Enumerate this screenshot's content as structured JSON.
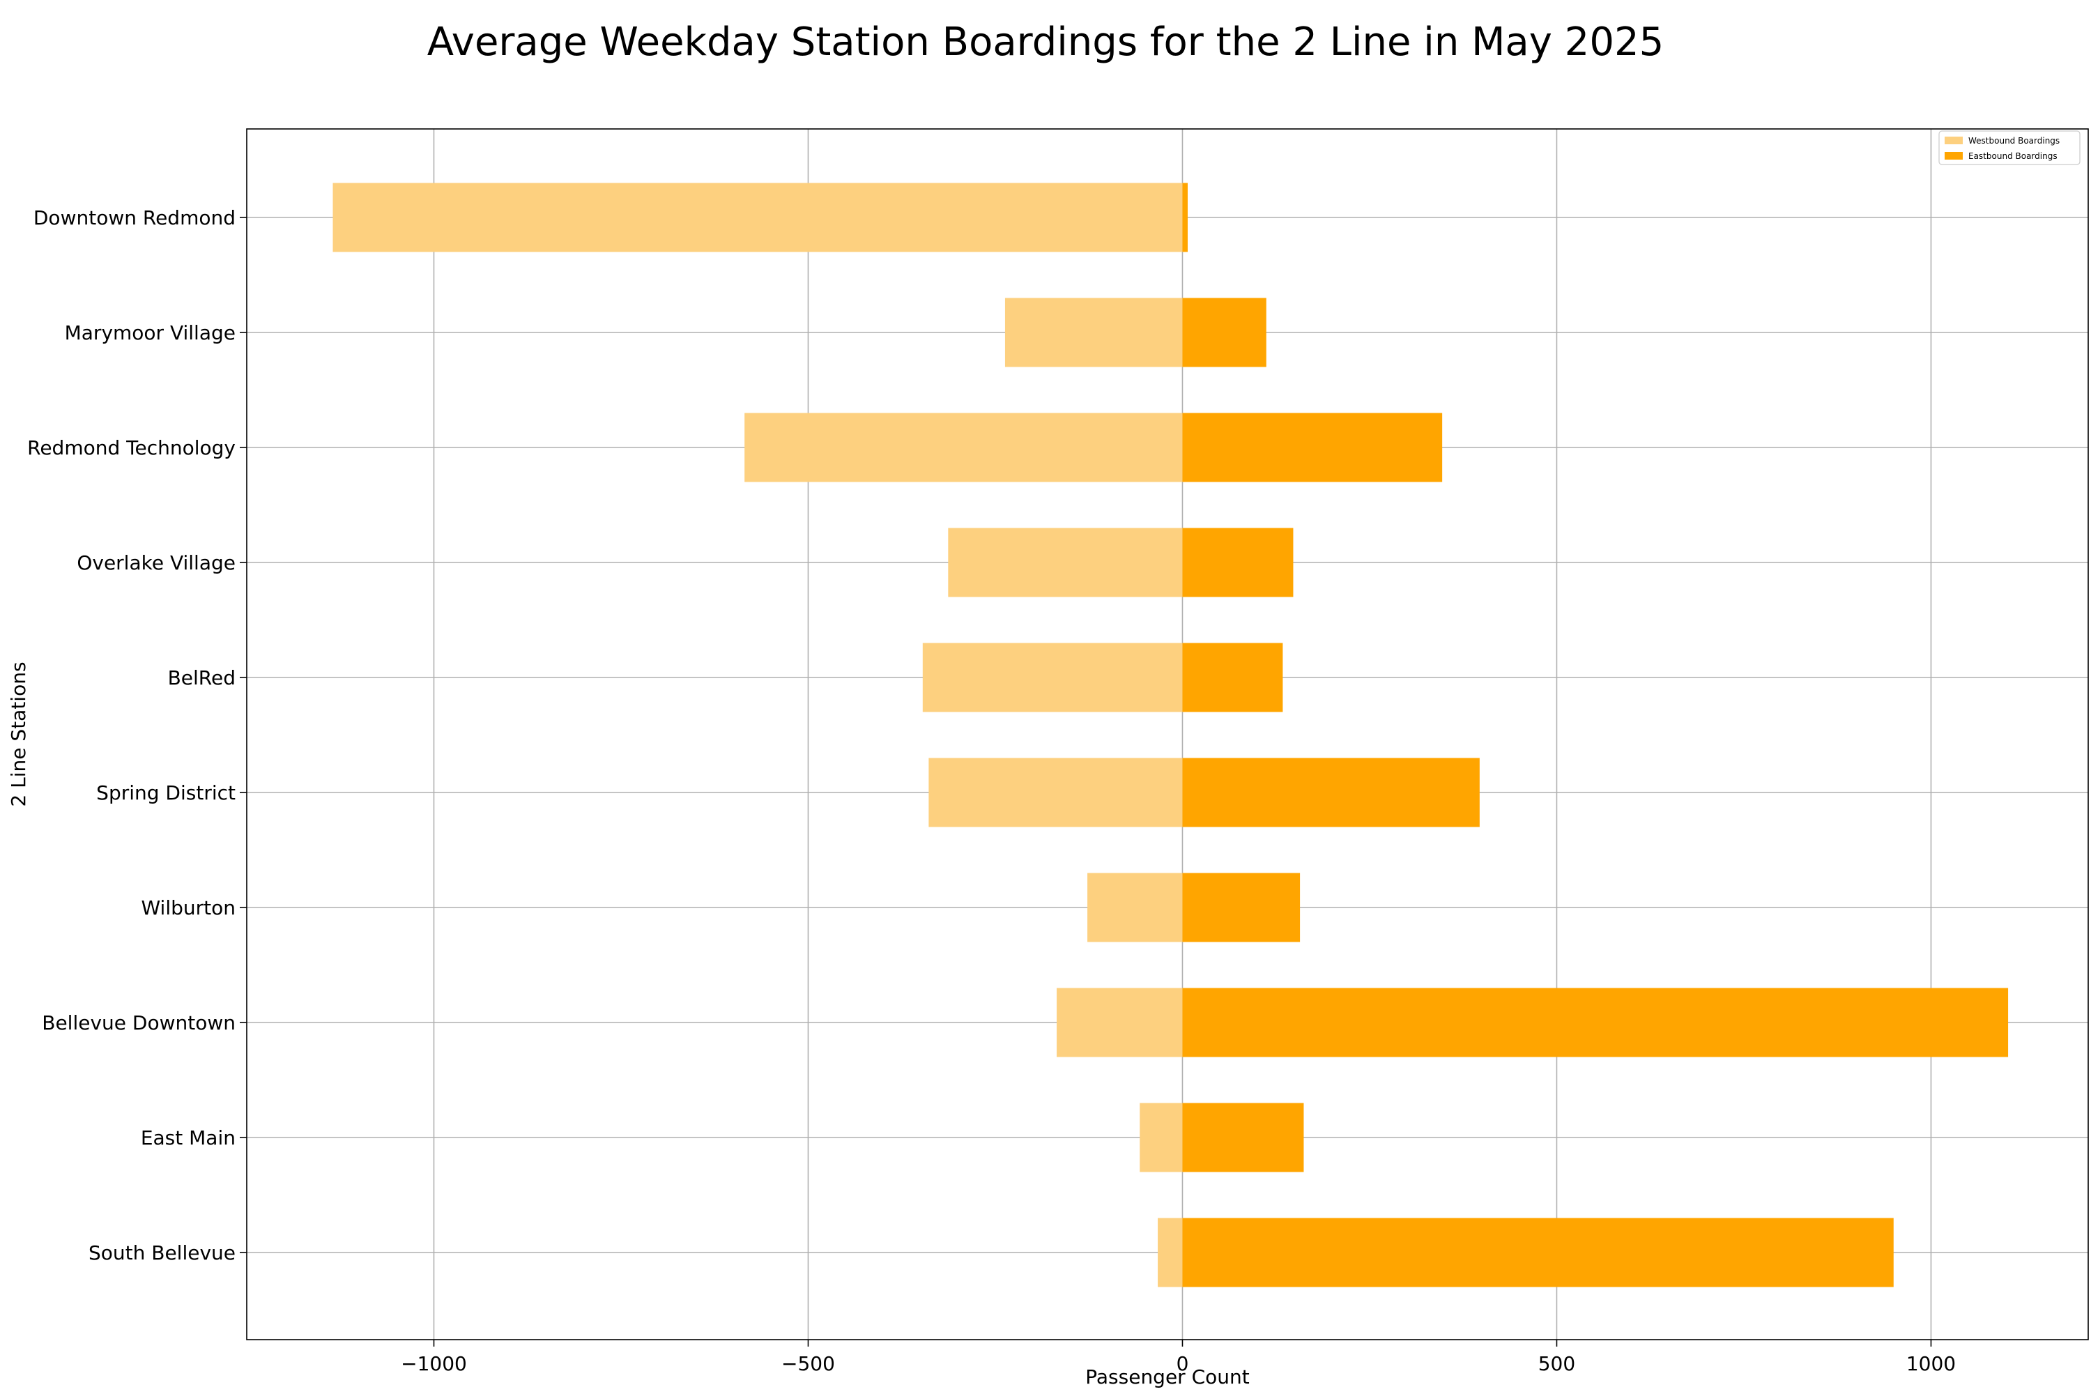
{
  "chart_data": {
    "type": "bar",
    "orientation": "horizontal",
    "title": "Average Weekday Station Boardings for the 2 Line in May 2025",
    "xlabel": "Passenger Count",
    "ylabel": "2 Line Stations",
    "xlim": [
      -1250,
      1210
    ],
    "xticks": [
      -1000,
      -500,
      0,
      500,
      1000
    ],
    "xtick_labels": [
      "−1000",
      "−500",
      "0",
      "500",
      "1000"
    ],
    "grid": true,
    "legend_position": "top-right",
    "categories": [
      "Downtown Redmond",
      "Marymoor Village",
      "Redmond Technology",
      "Overlake Village",
      "BelRed",
      "Spring District",
      "Wilburton",
      "Bellevue Downtown",
      "East Main",
      "South Bellevue"
    ],
    "series": [
      {
        "name": "Westbound Boardings",
        "color": "#fdd07f",
        "values": [
          -1135,
          -237,
          -585,
          -313,
          -347,
          -339,
          -127,
          -168,
          -57,
          -33
        ]
      },
      {
        "name": "Eastbound Boardings",
        "color": "#ffa500",
        "values": [
          7,
          112,
          347,
          148,
          134,
          397,
          157,
          1103,
          162,
          950
        ]
      }
    ]
  }
}
